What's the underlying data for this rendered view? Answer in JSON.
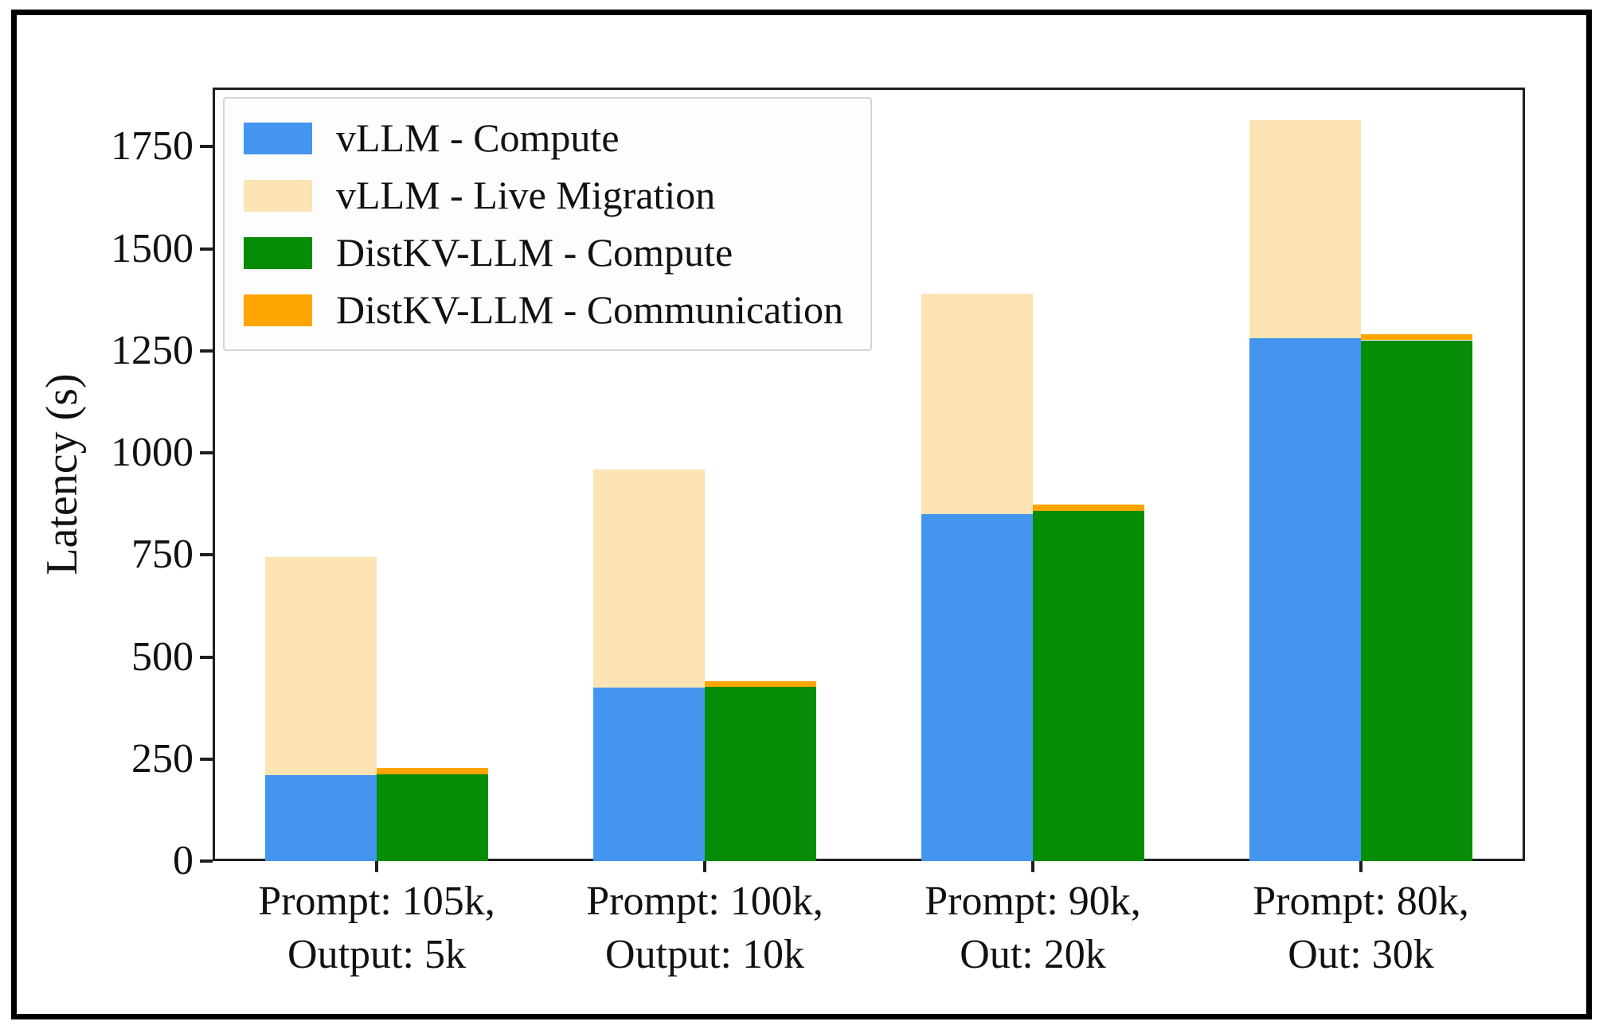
{
  "chart_data": {
    "type": "bar",
    "stacked": true,
    "grid": false,
    "title": "",
    "xlabel": "",
    "ylabel": "Latency (s)",
    "ylim": [
      0,
      1895
    ],
    "yticks": [
      0,
      250,
      500,
      750,
      1000,
      1250,
      1500,
      1750
    ],
    "legend_position": "upper left",
    "categories": [
      [
        "Prompt: 105k,",
        "Output: 5k"
      ],
      [
        "Prompt: 100k,",
        "Output: 10k"
      ],
      [
        "Prompt: 90k,",
        "Out: 20k"
      ],
      [
        "Prompt: 80k,",
        "Out: 30k"
      ]
    ],
    "series": [
      {
        "name": "vLLM - Compute",
        "stack": "vllm",
        "color": "#4495ef",
        "values": [
          210,
          425,
          850,
          1280
        ]
      },
      {
        "name": "vLLM - Live Migration",
        "stack": "vllm",
        "color": "#fce4b4",
        "values": [
          535,
          535,
          540,
          535
        ]
      },
      {
        "name": "DistKV-LLM - Compute",
        "stack": "distkv",
        "color": "#078c07",
        "values": [
          212,
          427,
          858,
          1276
        ]
      },
      {
        "name": "DistKV-LLM - Communication",
        "stack": "distkv",
        "color": "#ffa502",
        "values": [
          16,
          14,
          16,
          14
        ]
      }
    ]
  },
  "colors": {
    "spine": "#1f1f1f",
    "legend_border": "#d5d5d5",
    "legend_background": "#fdfdfd",
    "text": "#111111",
    "figure_frame": "#000000"
  }
}
